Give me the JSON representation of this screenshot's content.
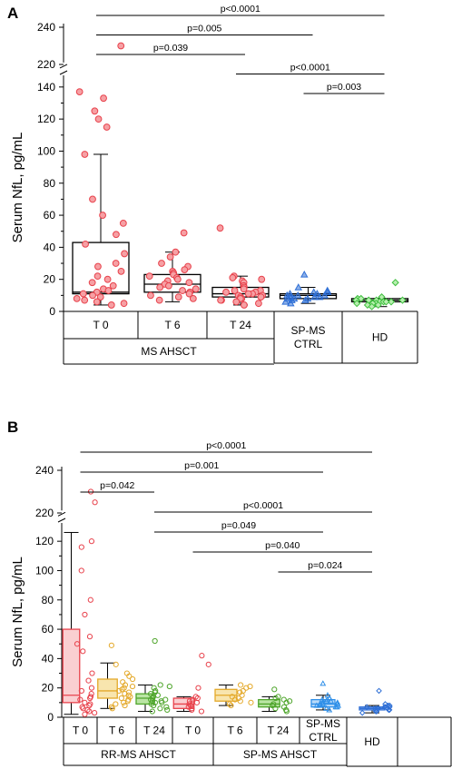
{
  "chart_data": [
    {
      "panel": "A",
      "type": "scatter",
      "ylabel": "Serum NfL, pg/mL",
      "y_ticks": [
        "0",
        "20",
        "40",
        "60",
        "80",
        "100",
        "120",
        "140",
        "220",
        "240"
      ],
      "ylim": [
        0,
        240
      ],
      "y_axis_break": [
        145,
        215
      ],
      "groups": [
        {
          "label": "T 0",
          "super": "MS AHSCT",
          "color": "#e8424c",
          "fill": "#f6a0a4",
          "marker": "circle",
          "box": {
            "min": 4,
            "q1": 11,
            "median": 12,
            "q3": 43,
            "max": 98
          },
          "points": [
            230,
            137,
            133,
            125,
            120,
            115,
            98,
            70,
            60,
            55,
            48,
            42,
            36,
            30,
            28,
            25,
            22,
            20,
            18,
            16,
            14,
            13,
            12,
            11,
            10,
            9,
            8,
            7,
            6,
            5,
            4
          ]
        },
        {
          "label": "T 6",
          "super": "MS AHSCT",
          "color": "#e8424c",
          "fill": "#f6a0a4",
          "marker": "circle",
          "box": {
            "min": 6,
            "q1": 12,
            "median": 17,
            "q3": 23,
            "max": 37
          },
          "points": [
            49,
            37,
            34,
            30,
            28,
            26,
            25,
            24,
            23,
            22,
            21,
            20,
            19,
            18,
            17,
            16,
            15,
            14,
            13,
            12,
            11,
            10,
            9,
            8,
            7
          ]
        },
        {
          "label": "T 24",
          "super": "MS AHSCT",
          "color": "#e8424c",
          "fill": "#f6a0a4",
          "marker": "circle",
          "box": {
            "min": 4,
            "q1": 9,
            "median": 11,
            "q3": 15,
            "max": 22
          },
          "points": [
            52,
            22,
            21,
            20,
            19,
            18,
            16,
            15,
            14,
            13,
            13,
            12,
            12,
            11,
            11,
            10,
            10,
            9,
            9,
            8,
            8,
            7,
            7,
            6,
            5,
            4
          ]
        },
        {
          "label": "SP-MS\nCTRL",
          "super": "",
          "color": "#2f6fd6",
          "fill": "#a9c6f4",
          "marker": "triangle",
          "box": {
            "min": 5,
            "q1": 8,
            "median": 10,
            "q3": 11,
            "max": 15
          },
          "points": [
            23,
            15,
            13,
            12,
            12,
            11,
            11,
            10,
            10,
            10,
            9,
            9,
            9,
            8,
            8,
            8,
            7,
            7,
            6,
            5
          ]
        },
        {
          "label": "HD",
          "super": "",
          "color": "#3fbf3f",
          "fill": "#b8efb0",
          "marker": "diamond",
          "box": {
            "min": 3,
            "q1": 6,
            "median": 7,
            "q3": 8,
            "max": 8
          },
          "points": [
            18,
            9,
            8,
            8,
            7,
            7,
            7,
            7,
            6,
            6,
            6,
            6,
            5,
            5,
            5,
            4,
            4,
            3
          ]
        }
      ],
      "comparisons": [
        {
          "from": 0,
          "to": 4,
          "label": "p<0.0001"
        },
        {
          "from": 0,
          "to": 3,
          "label": "p=0.005"
        },
        {
          "from": 0,
          "to": 2,
          "label": "p=0.039"
        },
        {
          "from": 2,
          "to": 4,
          "label": "p<0.0001"
        },
        {
          "from": 3,
          "to": 4,
          "label": "p=0.003"
        }
      ],
      "category_rows": [
        [
          "T 0",
          "T 6",
          "T 24",
          "SP-MS\nCTRL",
          "HD"
        ],
        [
          "MS AHSCT"
        ]
      ]
    },
    {
      "panel": "B",
      "type": "scatter",
      "ylabel": "Serum NfL, pg/mL",
      "y_ticks": [
        "0",
        "20",
        "40",
        "60",
        "80",
        "100",
        "120",
        "220",
        "240"
      ],
      "ylim": [
        0,
        240
      ],
      "y_axis_break": [
        130,
        215
      ],
      "groups": [
        {
          "label": "T 0",
          "super": "RR-MS AHSCT",
          "color": "#e8424c",
          "fill": "#f9c3c5",
          "marker": "circle",
          "box": {
            "min": 2,
            "q1": 10,
            "median": 15,
            "q3": 60,
            "max": 126
          },
          "points": [
            230,
            225,
            120,
            116,
            100,
            80,
            70,
            55,
            50,
            45,
            30,
            25,
            20,
            18,
            16,
            14,
            13,
            12,
            10,
            9,
            8,
            7,
            6,
            5,
            4,
            3,
            2
          ]
        },
        {
          "label": "T 6",
          "super": "RR-MS AHSCT",
          "color": "#e4a92a",
          "fill": "#f6de9a",
          "marker": "circle",
          "box": {
            "min": 6,
            "q1": 13,
            "median": 18,
            "q3": 26,
            "max": 37
          },
          "points": [
            49,
            36,
            30,
            28,
            26,
            24,
            22,
            21,
            20,
            19,
            18,
            17,
            16,
            15,
            14,
            13,
            12,
            11,
            10,
            9,
            8,
            7,
            6
          ]
        },
        {
          "label": "T 24",
          "super": "RR-MS AHSCT",
          "color": "#4ea52b",
          "fill": "#a9de8d",
          "marker": "circle",
          "box": {
            "min": 4,
            "q1": 9,
            "median": 13,
            "q3": 16,
            "max": 22
          },
          "points": [
            52,
            22,
            21,
            20,
            18,
            17,
            16,
            15,
            14,
            13,
            12,
            12,
            11,
            11,
            10,
            10,
            9,
            8,
            7,
            6,
            5,
            4
          ]
        },
        {
          "label": "T 0",
          "super": "SP-MS AHSCT",
          "color": "#e8424c",
          "fill": "#f9c3c5",
          "marker": "circle",
          "box": {
            "min": 4,
            "q1": 6,
            "median": 9,
            "q3": 13,
            "max": 14
          },
          "points": [
            42,
            36,
            20,
            14,
            13,
            12,
            11,
            10,
            9,
            8,
            7,
            6,
            5,
            4
          ]
        },
        {
          "label": "T 6",
          "super": "SP-MS AHSCT",
          "color": "#e4a92a",
          "fill": "#f6de9a",
          "marker": "circle",
          "box": {
            "min": 8,
            "q1": 11,
            "median": 15,
            "q3": 19,
            "max": 22
          },
          "points": [
            22,
            21,
            20,
            18,
            17,
            15,
            14,
            13,
            12,
            11,
            10,
            9,
            8
          ]
        },
        {
          "label": "T 24",
          "super": "SP-MS AHSCT",
          "color": "#4ea52b",
          "fill": "#a9de8d",
          "marker": "circle",
          "box": {
            "min": 4,
            "q1": 7,
            "median": 9,
            "q3": 12,
            "max": 14
          },
          "points": [
            19,
            14,
            13,
            12,
            11,
            10,
            9,
            8,
            7,
            6,
            5,
            4
          ]
        },
        {
          "label": "SP-MS\nCTRL",
          "super": "",
          "color": "#2f8fe8",
          "fill": "#a9d1f7",
          "marker": "triangle",
          "box": {
            "min": 5,
            "q1": 7,
            "median": 9,
            "q3": 12,
            "max": 15
          },
          "points": [
            23,
            15,
            13,
            12,
            12,
            11,
            11,
            10,
            10,
            10,
            9,
            9,
            9,
            8,
            8,
            8,
            7,
            7,
            6,
            5
          ]
        },
        {
          "label": "HD",
          "super": "",
          "color": "#2f6fd6",
          "fill": "#9fb9ef",
          "marker": "diamond",
          "box": {
            "min": 3,
            "q1": 5,
            "median": 6,
            "q3": 7,
            "max": 8
          },
          "points": [
            18,
            9,
            8,
            8,
            7,
            7,
            7,
            7,
            6,
            6,
            6,
            6,
            5,
            5,
            5,
            4,
            4,
            3
          ]
        }
      ],
      "comparisons": [
        {
          "from": 0,
          "to": 7,
          "label": "p<0.0001"
        },
        {
          "from": 0,
          "to": 6,
          "label": "p=0.001"
        },
        {
          "from": 0,
          "to": 2,
          "label": "p=0.042"
        },
        {
          "from": 2,
          "to": 7,
          "label": "p<0.0001"
        },
        {
          "from": 2,
          "to": 6,
          "label": "p=0.049"
        },
        {
          "from": 3,
          "to": 7,
          "label": "p=0.040"
        },
        {
          "from": 5,
          "to": 7,
          "label": "p=0.024"
        }
      ],
      "category_rows": [
        [
          "T 0",
          "T 6",
          "T 24",
          "T 0",
          "T 6",
          "T 24",
          "SP-MS\nCTRL",
          "HD"
        ],
        [
          "RR-MS AHSCT",
          "SP-MS AHSCT"
        ]
      ]
    }
  ]
}
